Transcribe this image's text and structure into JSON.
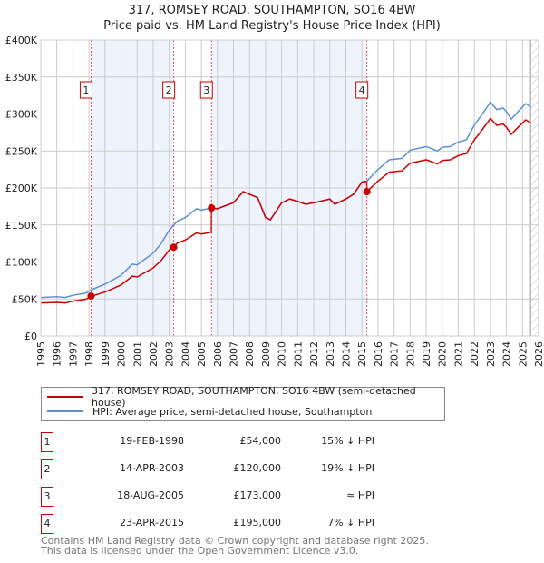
{
  "chart_data": {
    "type": "line",
    "title": "317, ROMSEY ROAD, SOUTHAMPTON, SO16 4BW",
    "subtitle": "Price paid vs. HM Land Registry's House Price Index (HPI)",
    "xlim": [
      1995,
      2026
    ],
    "ylim": [
      0,
      400000
    ],
    "x_ticks": [
      "1995",
      "1996",
      "1997",
      "1998",
      "1999",
      "2000",
      "2001",
      "2002",
      "2003",
      "2004",
      "2005",
      "2006",
      "2007",
      "2008",
      "2009",
      "2010",
      "2011",
      "2012",
      "2013",
      "2014",
      "2015",
      "2016",
      "2017",
      "2018",
      "2019",
      "2020",
      "2021",
      "2022",
      "2023",
      "2024",
      "2025",
      "2026"
    ],
    "y_ticks": [
      "£0",
      "£50K",
      "£100K",
      "£150K",
      "£200K",
      "£250K",
      "£300K",
      "£350K",
      "£400K"
    ],
    "grid": true,
    "colors": {
      "property": "#cc0000",
      "hpi": "#5b8fd4",
      "shade": "#eef3fc"
    },
    "hpi_series": [
      [
        1995,
        52000
      ],
      [
        1996,
        53000
      ],
      [
        1996.5,
        52000
      ],
      [
        1997,
        55000
      ],
      [
        1997.8,
        58000
      ],
      [
        1998.2,
        63000
      ],
      [
        1999,
        70000
      ],
      [
        2000,
        82000
      ],
      [
        2000.7,
        97000
      ],
      [
        2001,
        96000
      ],
      [
        2002,
        112000
      ],
      [
        2002.5,
        125000
      ],
      [
        2003,
        143000
      ],
      [
        2003.5,
        155000
      ],
      [
        2004,
        160000
      ],
      [
        2004.7,
        172000
      ],
      [
        2005,
        170000
      ],
      [
        2005.6,
        173000
      ],
      [
        2006,
        172000
      ],
      [
        2007,
        180000
      ],
      [
        2007.6,
        195000
      ],
      [
        2008.5,
        187000
      ],
      [
        2009,
        160000
      ],
      [
        2009.3,
        157000
      ],
      [
        2010,
        180000
      ],
      [
        2010.5,
        185000
      ],
      [
        2011,
        182000
      ],
      [
        2011.5,
        178000
      ],
      [
        2012,
        180000
      ],
      [
        2013,
        185000
      ],
      [
        2013.3,
        178000
      ],
      [
        2014,
        185000
      ],
      [
        2014.5,
        192000
      ],
      [
        2015,
        208000
      ],
      [
        2015.3,
        209000
      ],
      [
        2016,
        225000
      ],
      [
        2016.7,
        238000
      ],
      [
        2017.5,
        240000
      ],
      [
        2018,
        251000
      ],
      [
        2019,
        256000
      ],
      [
        2019.7,
        250000
      ],
      [
        2020,
        255000
      ],
      [
        2020.5,
        256000
      ],
      [
        2021,
        262000
      ],
      [
        2021.5,
        265000
      ],
      [
        2022,
        285000
      ],
      [
        2022.5,
        300000
      ],
      [
        2023,
        316000
      ],
      [
        2023.4,
        306000
      ],
      [
        2023.8,
        308000
      ],
      [
        2024,
        303000
      ],
      [
        2024.3,
        293000
      ],
      [
        2024.8,
        305000
      ],
      [
        2025.2,
        314000
      ],
      [
        2025.5,
        310000
      ]
    ],
    "sales": [
      {
        "label": "1",
        "x": 1998.13,
        "price": 54000,
        "date": "19-FEB-1998",
        "price_text": "£54,000",
        "relation": "15% ↓ HPI"
      },
      {
        "label": "2",
        "x": 2003.28,
        "price": 120000,
        "date": "14-APR-2003",
        "price_text": "£120,000",
        "relation": "19% ↓ HPI"
      },
      {
        "label": "3",
        "x": 2005.63,
        "price": 173000,
        "date": "18-AUG-2005",
        "price_text": "£173,000",
        "relation": "≈ HPI"
      },
      {
        "label": "4",
        "x": 2015.31,
        "price": 195000,
        "date": "23-APR-2015",
        "price_text": "£195,000",
        "relation": "7% ↓ HPI"
      }
    ],
    "forecast_start": 2025.5,
    "legend": {
      "property": "317, ROMSEY ROAD, SOUTHAMPTON, SO16 4BW (semi-detached house)",
      "hpi": "HPI: Average price, semi-detached house, Southampton"
    }
  },
  "footer": {
    "line1": "Contains HM Land Registry data © Crown copyright and database right 2025.",
    "line2": "This data is licensed under the Open Government Licence v3.0."
  }
}
